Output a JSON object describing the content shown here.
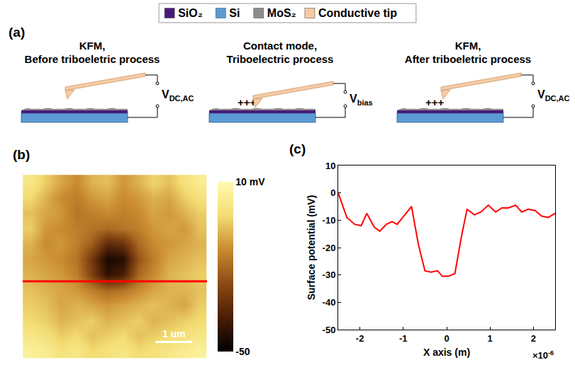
{
  "diagram": {
    "panel": "(a)",
    "legend": [
      {
        "label": "SiO₂",
        "color": "#4a1a78"
      },
      {
        "label": "Si",
        "color": "#5b9bd5"
      },
      {
        "label": "MoS₂",
        "color": "#8c8c8c"
      },
      {
        "label": "Conductive tip",
        "color": "#f7caa3"
      }
    ],
    "steps": [
      {
        "title": [
          "KFM,",
          "Before triboeletric process"
        ],
        "voltage": {
          "symbol": "V",
          "subscript": "DC,AC"
        },
        "contact": false
      },
      {
        "title": [
          "Contact mode,",
          "Triboelectric process"
        ],
        "voltage": {
          "symbol": "V",
          "subscript": "bias"
        },
        "contact": true,
        "charges": "+++"
      },
      {
        "title": [
          "KFM,",
          "After triboeletric process"
        ],
        "voltage": {
          "symbol": "V",
          "subscript": "DC,AC"
        },
        "contact": false,
        "charges": "+++"
      }
    ]
  },
  "chart_data": [
    {
      "type": "heatmap",
      "panel": "(b)",
      "x": [
        -2.29,
        -1.88,
        -1.46,
        -1.04,
        -0.63,
        -0.21,
        0.21,
        0.63,
        1.04,
        1.46,
        1.88,
        2.29
      ],
      "y": [
        2.29,
        1.88,
        1.46,
        1.04,
        0.63,
        0.21,
        -0.21,
        -0.63,
        -1.04,
        -1.46,
        -1.88,
        -2.29
      ],
      "z": [
        [
          2,
          -4,
          -10,
          -14,
          -8,
          -6,
          -12,
          -8,
          -3,
          -6,
          0,
          4
        ],
        [
          -2,
          -8,
          -14,
          -16,
          -12,
          -10,
          -14,
          -12,
          -8,
          -10,
          -4,
          0
        ],
        [
          -6,
          -10,
          -12,
          -18,
          -16,
          -14,
          -16,
          -14,
          -10,
          -12,
          -8,
          -4
        ],
        [
          -4,
          -12,
          -14,
          -16,
          -18,
          -20,
          -18,
          -16,
          -12,
          -10,
          -12,
          -6
        ],
        [
          -8,
          -14,
          -12,
          -16,
          -22,
          -34,
          -32,
          -20,
          -14,
          -12,
          -10,
          -8
        ],
        [
          -10,
          -12,
          -14,
          -18,
          -30,
          -46,
          -44,
          -24,
          -16,
          -10,
          -8,
          -6
        ],
        [
          -8,
          -10,
          -12,
          -16,
          -28,
          -42,
          -38,
          -20,
          -14,
          -8,
          -6,
          -4
        ],
        [
          -6,
          -8,
          -10,
          -12,
          -16,
          -20,
          -18,
          -14,
          -10,
          -8,
          -8,
          -6
        ],
        [
          -4,
          -6,
          -10,
          -8,
          -10,
          -12,
          -10,
          -8,
          -6,
          -8,
          -10,
          -4
        ],
        [
          -2,
          -4,
          -8,
          -6,
          -4,
          -8,
          -6,
          -4,
          -8,
          -6,
          -4,
          -2
        ],
        [
          2,
          0,
          -4,
          -2,
          -6,
          -4,
          -2,
          -6,
          -4,
          -2,
          0,
          2
        ],
        [
          6,
          4,
          0,
          2,
          -2,
          0,
          2,
          -2,
          0,
          2,
          4,
          6
        ]
      ],
      "xlim": [
        -2.5,
        2.5
      ],
      "ylim": [
        -2.5,
        2.5
      ],
      "tick_labels": false,
      "colorscale": [
        "#000000",
        "#4a1e06",
        "#8b4a14",
        "#c98a30",
        "#f3dc72",
        "#fffbb0"
      ],
      "colorbar_range": [
        -50,
        10
      ],
      "colorbar_ticks": [
        {
          "value": 10,
          "label": "10 mV"
        },
        {
          "value": -50,
          "label": "-50"
        }
      ],
      "profile": {
        "y": -0.4,
        "color": "#ff0000"
      },
      "scale_bar": {
        "length": 1,
        "label": "1 um"
      }
    },
    {
      "type": "line",
      "panel": "(c)",
      "x": [
        -2.5,
        -2.3,
        -2.12,
        -1.97,
        -1.84,
        -1.67,
        -1.54,
        -1.39,
        -1.26,
        -1.14,
        -0.99,
        -0.81,
        -0.65,
        -0.5,
        -0.36,
        -0.21,
        -0.1,
        0.04,
        0.19,
        0.34,
        0.47,
        0.64,
        0.79,
        0.96,
        1.13,
        1.27,
        1.42,
        1.59,
        1.73,
        1.88,
        2.04,
        2.19,
        2.34,
        2.5
      ],
      "values": [
        0,
        -9,
        -11.5,
        -12,
        -7.5,
        -12.5,
        -14,
        -11.5,
        -10.5,
        -11.5,
        -8.5,
        -5,
        -19,
        -28.5,
        -29,
        -28.5,
        -30.5,
        -30.5,
        -29.5,
        -16,
        -6,
        -8,
        -7,
        -4.5,
        -7,
        -5.5,
        -5.5,
        -4.5,
        -7,
        -6,
        -6.5,
        -8.5,
        -9,
        -7.5
      ],
      "color": "#ff0000",
      "xlim": [
        -2.5,
        2.5
      ],
      "xticks": [
        -2,
        -1,
        0,
        1,
        2
      ],
      "ylim": [
        -50,
        10
      ],
      "yticks": [
        -50,
        -40,
        -30,
        -20,
        -10,
        0,
        10
      ],
      "x_label": "X axis (m)",
      "y_label": "Surface potential (mV)",
      "annotations": [
        {
          "text": "×10",
          "superscript": "-6"
        }
      ],
      "grid": false
    }
  ]
}
